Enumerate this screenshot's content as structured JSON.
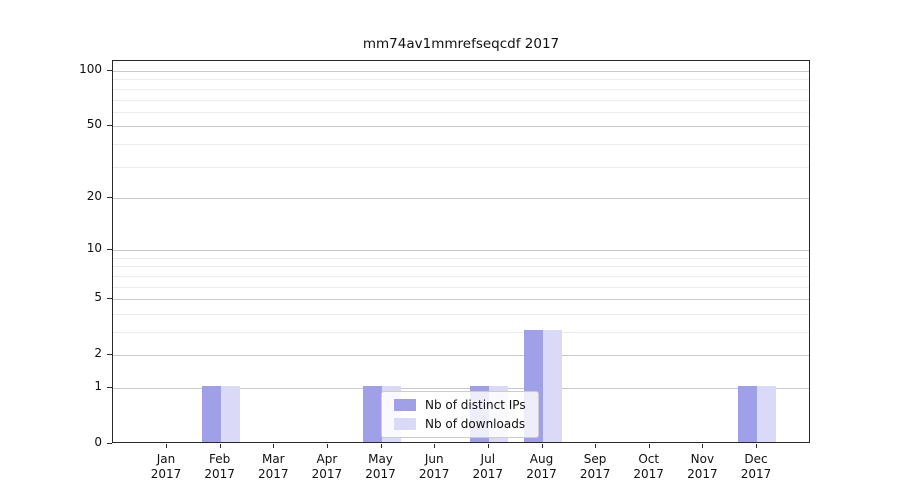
{
  "chart_data": {
    "type": "bar",
    "title": "mm74av1mmrefseqcdf 2017",
    "x_months": [
      "Jan",
      "Feb",
      "Mar",
      "Apr",
      "May",
      "Jun",
      "Jul",
      "Aug",
      "Sep",
      "Oct",
      "Nov",
      "Dec"
    ],
    "x_year": "2017",
    "series": [
      {
        "name": "Nb of distinct IPs",
        "color": "#a0a0e8",
        "values": [
          0,
          1,
          0,
          0,
          1,
          0,
          1,
          3,
          0,
          0,
          0,
          1
        ]
      },
      {
        "name": "Nb of downloads",
        "color": "#dadaf8",
        "values": [
          0,
          1,
          0,
          0,
          1,
          0,
          1,
          3,
          0,
          0,
          0,
          1
        ]
      }
    ],
    "y_scale": "log10(1+x)",
    "y_ticks": [
      0,
      1,
      2,
      5,
      10,
      20,
      50,
      100
    ],
    "y_minor_gridlines": [
      3,
      4,
      6,
      7,
      8,
      9,
      30,
      40,
      60,
      70,
      80,
      90
    ],
    "ylim": [
      0,
      113
    ],
    "grid": true,
    "legend_position": "lower center"
  }
}
